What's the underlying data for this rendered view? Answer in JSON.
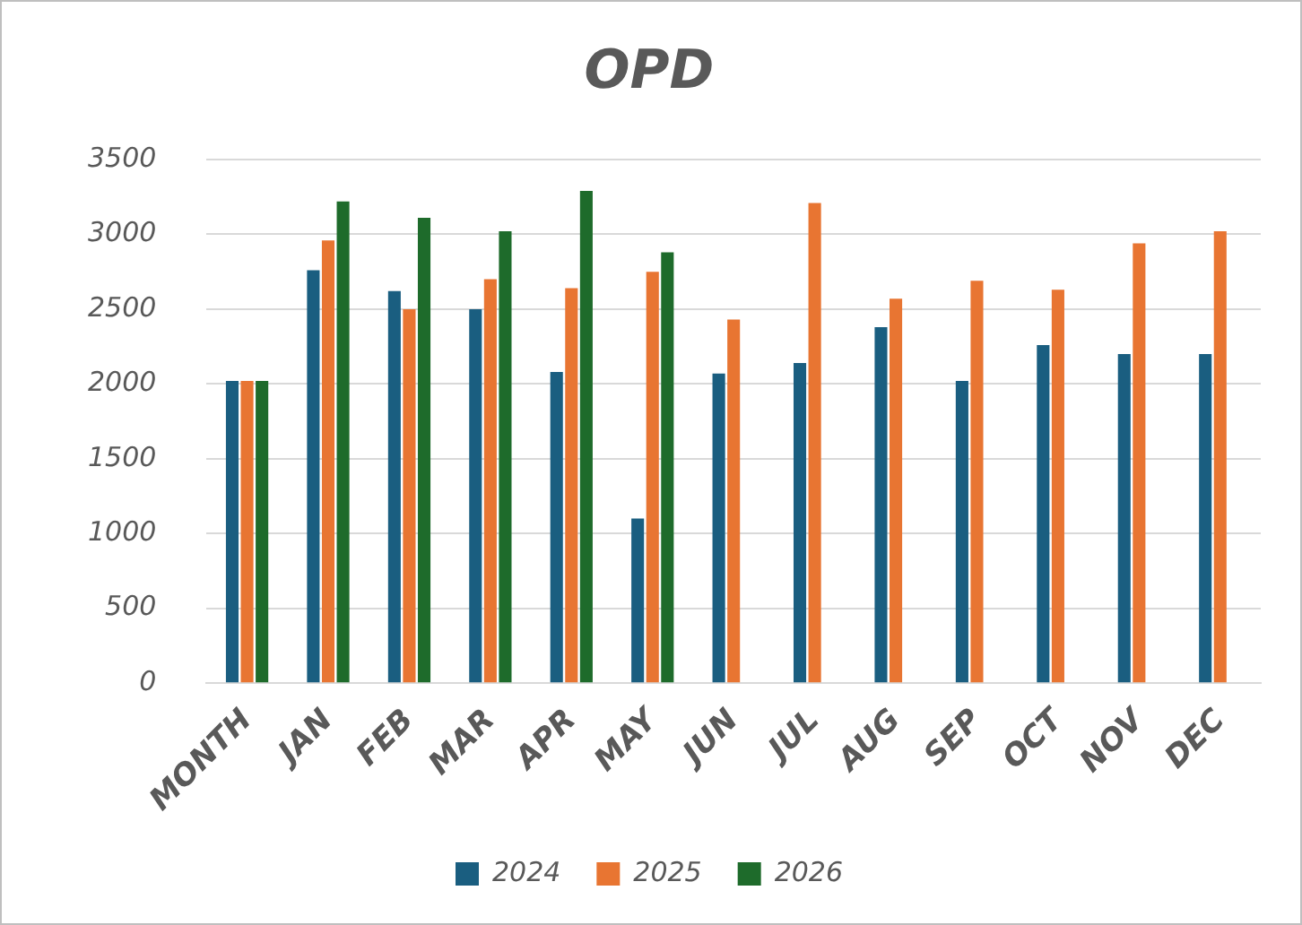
{
  "chart_data": {
    "type": "bar",
    "title": "OPD",
    "categories": [
      "MONTH",
      "JAN",
      "FEB",
      "MAR",
      "APR",
      "MAY",
      "JUN",
      "JUL",
      "AUG",
      "SEP",
      "OCT",
      "NOV",
      "DEC"
    ],
    "series": [
      {
        "name": "2024",
        "color": "#1a5e80",
        "values": [
          2020,
          2760,
          2620,
          2500,
          2080,
          1100,
          2070,
          2140,
          2380,
          2020,
          2260,
          2200,
          2200
        ]
      },
      {
        "name": "2025",
        "color": "#e87532",
        "values": [
          2020,
          2960,
          2500,
          2700,
          2640,
          2750,
          2430,
          3210,
          2570,
          2690,
          2630,
          2940,
          3020
        ]
      },
      {
        "name": "2026",
        "color": "#1e6b2b",
        "values": [
          2020,
          3220,
          3110,
          3020,
          3290,
          2880,
          null,
          null,
          null,
          null,
          null,
          null,
          null
        ]
      }
    ],
    "ylim": [
      0,
      3500
    ],
    "yticks": [
      0,
      500,
      1000,
      1500,
      2000,
      2500,
      3000,
      3500
    ],
    "grid": "y",
    "legend": "bottom"
  }
}
